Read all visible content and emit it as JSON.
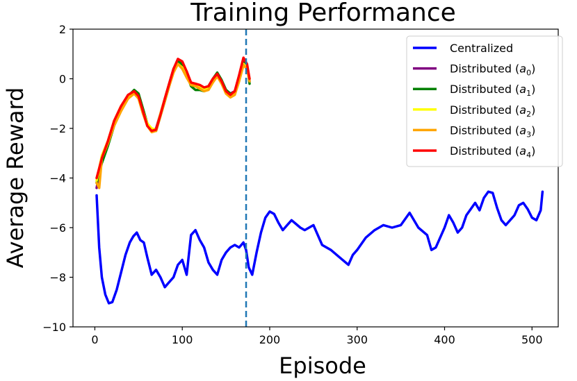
{
  "chart_data": {
    "type": "line",
    "title": "Training Performance",
    "xlabel": "Episode",
    "ylabel": "Average Reward",
    "xlim": [
      -25,
      530
    ],
    "ylim": [
      -10,
      2
    ],
    "xticks": [
      0,
      100,
      200,
      300,
      400,
      500
    ],
    "xtick_labels": [
      "0",
      "100",
      "200",
      "300",
      "400",
      "500"
    ],
    "yticks": [
      -10,
      -8,
      -6,
      -4,
      -2,
      0,
      2
    ],
    "ytick_labels": [
      "−10",
      "−8",
      "−6",
      "−4",
      "−2",
      "0",
      "2"
    ],
    "grid": false,
    "legend_position": "top-right",
    "vline": {
      "x": 173,
      "color": "#1f77b4",
      "style": "dashed"
    },
    "series": [
      {
        "name": "Centralized",
        "color": "#0000ff",
        "x": [
          2,
          5,
          8,
          12,
          16,
          20,
          25,
          30,
          35,
          40,
          44,
          48,
          52,
          56,
          60,
          65,
          70,
          75,
          80,
          85,
          90,
          95,
          100,
          105,
          110,
          115,
          120,
          125,
          130,
          135,
          140,
          145,
          150,
          155,
          160,
          165,
          170,
          173,
          176,
          180,
          185,
          190,
          195,
          200,
          205,
          210,
          215,
          220,
          225,
          230,
          235,
          240,
          250,
          260,
          270,
          280,
          290,
          295,
          300,
          310,
          320,
          330,
          340,
          350,
          360,
          370,
          380,
          385,
          390,
          400,
          405,
          410,
          415,
          420,
          425,
          430,
          435,
          440,
          445,
          450,
          455,
          460,
          465,
          470,
          475,
          480,
          485,
          490,
          495,
          500,
          505,
          510,
          512
        ],
        "y": [
          -4.7,
          -6.8,
          -8.0,
          -8.7,
          -9.05,
          -9.0,
          -8.5,
          -7.8,
          -7.1,
          -6.6,
          -6.35,
          -6.2,
          -6.5,
          -6.6,
          -7.2,
          -7.9,
          -7.7,
          -8.0,
          -8.4,
          -8.2,
          -8.0,
          -7.5,
          -7.3,
          -7.9,
          -6.3,
          -6.1,
          -6.5,
          -6.8,
          -7.4,
          -7.7,
          -7.9,
          -7.3,
          -7.0,
          -6.8,
          -6.7,
          -6.8,
          -6.6,
          -6.9,
          -7.6,
          -7.9,
          -7.0,
          -6.2,
          -5.6,
          -5.35,
          -5.45,
          -5.8,
          -6.1,
          -5.9,
          -5.7,
          -5.85,
          -6.0,
          -6.1,
          -5.9,
          -6.7,
          -6.9,
          -7.2,
          -7.5,
          -7.1,
          -6.9,
          -6.4,
          -6.1,
          -5.9,
          -6.0,
          -5.9,
          -5.4,
          -6.0,
          -6.3,
          -6.9,
          -6.8,
          -6.0,
          -5.5,
          -5.8,
          -6.2,
          -6.0,
          -5.5,
          -5.25,
          -5.0,
          -5.3,
          -4.8,
          -4.55,
          -4.6,
          -5.2,
          -5.7,
          -5.9,
          -5.7,
          -5.5,
          -5.1,
          -5.0,
          -5.25,
          -5.6,
          -5.7,
          -5.3,
          -4.55
        ]
      },
      {
        "name": "Distributed (a0)",
        "label_main": "Distributed (",
        "label_var": "a",
        "label_sub": "0",
        "label_end": ")",
        "color": "#800080",
        "x": [
          2,
          8,
          15,
          22,
          30,
          38,
          45,
          50,
          55,
          60,
          65,
          70,
          75,
          80,
          85,
          90,
          95,
          100,
          105,
          110,
          115,
          120,
          125,
          130,
          135,
          140,
          145,
          150,
          155,
          160,
          165,
          170,
          174,
          177
        ],
        "y": [
          -4.4,
          -3.3,
          -2.6,
          -1.8,
          -1.2,
          -0.7,
          -0.5,
          -0.7,
          -1.3,
          -1.9,
          -2.1,
          -2.0,
          -1.4,
          -0.8,
          -0.2,
          0.4,
          0.7,
          0.6,
          0.3,
          -0.2,
          -0.3,
          -0.35,
          -0.4,
          -0.35,
          -0.1,
          0.2,
          -0.1,
          -0.5,
          -0.6,
          -0.5,
          0.1,
          0.7,
          0.5,
          -0.1
        ]
      },
      {
        "name": "Distributed (a1)",
        "label_main": "Distributed (",
        "label_var": "a",
        "label_sub": "1",
        "label_end": ")",
        "color": "#008000",
        "x": [
          2,
          8,
          15,
          22,
          30,
          38,
          45,
          50,
          55,
          60,
          65,
          70,
          75,
          80,
          85,
          90,
          95,
          100,
          105,
          110,
          115,
          120,
          125,
          130,
          135,
          140,
          145,
          150,
          155,
          160,
          165,
          170,
          174,
          177
        ],
        "y": [
          -4.2,
          -3.4,
          -2.7,
          -1.9,
          -1.2,
          -0.7,
          -0.45,
          -0.6,
          -1.2,
          -1.8,
          -2.05,
          -2.1,
          -1.5,
          -0.9,
          -0.3,
          0.3,
          0.75,
          0.55,
          0.2,
          -0.3,
          -0.45,
          -0.45,
          -0.5,
          -0.3,
          0.0,
          0.25,
          -0.05,
          -0.45,
          -0.6,
          -0.55,
          0.0,
          0.65,
          0.55,
          -0.2
        ]
      },
      {
        "name": "Distributed (a2)",
        "label_main": "Distributed (",
        "label_var": "a",
        "label_sub": "2",
        "label_end": ")",
        "color": "#ffff00",
        "x": [
          2,
          8,
          15,
          22,
          30,
          38,
          45,
          50,
          55,
          60,
          65,
          70,
          75,
          80,
          85,
          90,
          95,
          100,
          105,
          110,
          115,
          120,
          125,
          130,
          135,
          140,
          145,
          150,
          155,
          160,
          165,
          170,
          174,
          177
        ],
        "y": [
          -4.1,
          -3.1,
          -2.5,
          -1.7,
          -1.1,
          -0.7,
          -0.55,
          -0.75,
          -1.3,
          -1.8,
          -2.0,
          -2.05,
          -1.4,
          -0.8,
          -0.2,
          0.3,
          0.6,
          0.45,
          0.1,
          -0.2,
          -0.25,
          -0.3,
          -0.45,
          -0.4,
          -0.1,
          0.15,
          -0.1,
          -0.55,
          -0.7,
          -0.6,
          -0.05,
          0.6,
          0.45,
          0.0
        ]
      },
      {
        "name": "Distributed (a3)",
        "label_main": "Distributed (",
        "label_var": "a",
        "label_sub": "3",
        "label_end": ")",
        "color": "#ffa500",
        "x": [
          2,
          5,
          8,
          15,
          22,
          30,
          38,
          45,
          50,
          55,
          60,
          65,
          70,
          75,
          80,
          85,
          90,
          95,
          100,
          105,
          110,
          115,
          120,
          125,
          130,
          135,
          140,
          145,
          150,
          155,
          160,
          165,
          170,
          174,
          177
        ],
        "y": [
          -4.2,
          -4.4,
          -3.2,
          -2.6,
          -1.9,
          -1.3,
          -0.8,
          -0.6,
          -0.8,
          -1.4,
          -1.9,
          -2.15,
          -2.1,
          -1.5,
          -0.9,
          -0.3,
          0.25,
          0.6,
          0.4,
          0.05,
          -0.25,
          -0.3,
          -0.4,
          -0.5,
          -0.45,
          -0.15,
          0.1,
          -0.2,
          -0.6,
          -0.75,
          -0.65,
          -0.1,
          0.55,
          0.4,
          -0.1
        ]
      },
      {
        "name": "Distributed (a4)",
        "label_main": "Distributed (",
        "label_var": "a",
        "label_sub": "4",
        "label_end": ")",
        "color": "#ff0000",
        "x": [
          2,
          8,
          15,
          22,
          30,
          38,
          45,
          50,
          55,
          60,
          65,
          70,
          75,
          80,
          85,
          90,
          95,
          100,
          105,
          110,
          115,
          120,
          125,
          130,
          135,
          140,
          145,
          150,
          155,
          160,
          165,
          170,
          174,
          177
        ],
        "y": [
          -4.0,
          -3.2,
          -2.5,
          -1.7,
          -1.1,
          -0.65,
          -0.5,
          -0.7,
          -1.3,
          -1.9,
          -2.1,
          -2.05,
          -1.45,
          -0.8,
          -0.2,
          0.4,
          0.8,
          0.7,
          0.3,
          -0.15,
          -0.2,
          -0.25,
          -0.35,
          -0.3,
          0.0,
          0.2,
          -0.1,
          -0.5,
          -0.65,
          -0.5,
          0.15,
          0.85,
          0.6,
          0.0
        ]
      }
    ]
  }
}
